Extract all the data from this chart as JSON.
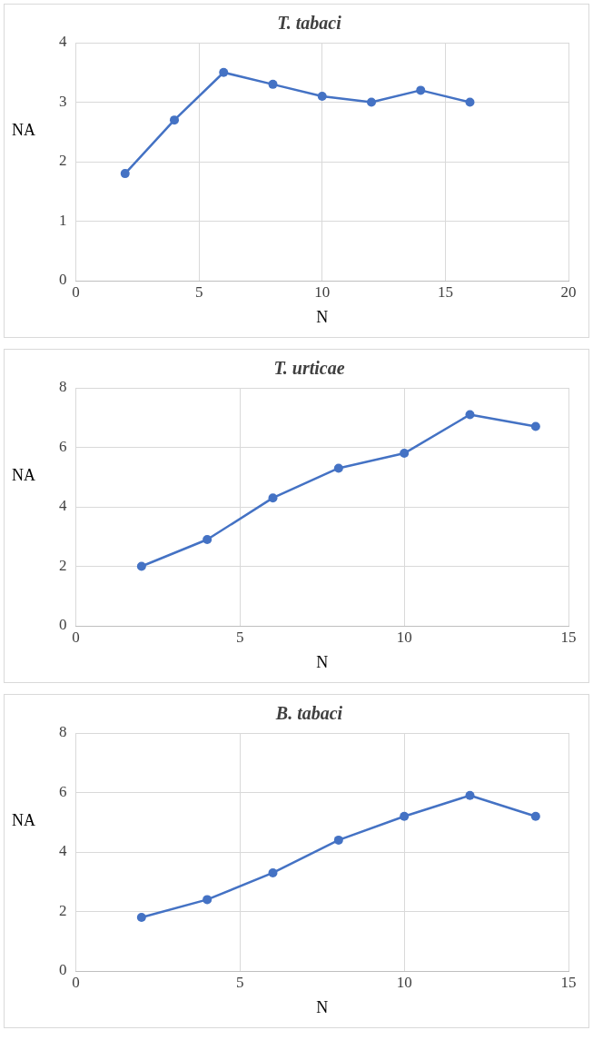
{
  "chart_data": [
    {
      "type": "line",
      "title": "T. tabaci",
      "xlabel": "N",
      "ylabel": "NA",
      "x": [
        2,
        4,
        6,
        8,
        10,
        12,
        14,
        16
      ],
      "series": [
        {
          "color": "#4472c4",
          "values": [
            1.8,
            2.7,
            3.5,
            3.3,
            3.1,
            3.0,
            3.2,
            3.0
          ]
        }
      ],
      "xlim": [
        0,
        20
      ],
      "xticks": [
        0,
        5,
        10,
        15,
        20
      ],
      "ylim": [
        0,
        4
      ],
      "yticks": [
        0,
        1,
        2,
        3,
        4
      ],
      "grid": true,
      "legend": false,
      "marker": "circle",
      "line_style": "solid"
    },
    {
      "type": "line",
      "title": "T. urticae",
      "xlabel": "N",
      "ylabel": "NA",
      "x": [
        2,
        4,
        6,
        8,
        10,
        12,
        14
      ],
      "series": [
        {
          "color": "#4472c4",
          "values": [
            2.0,
            2.9,
            4.3,
            5.3,
            5.8,
            7.1,
            6.7
          ]
        }
      ],
      "xlim": [
        0,
        15
      ],
      "xticks": [
        0,
        5,
        10,
        15
      ],
      "ylim": [
        0,
        8
      ],
      "yticks": [
        0,
        2,
        4,
        6,
        8
      ],
      "grid": true,
      "legend": false,
      "marker": "circle",
      "line_style": "solid"
    },
    {
      "type": "line",
      "title": "B. tabaci",
      "xlabel": "N",
      "ylabel": "NA",
      "x": [
        2,
        4,
        6,
        8,
        10,
        12,
        14
      ],
      "series": [
        {
          "color": "#4472c4",
          "values": [
            1.8,
            2.4,
            3.3,
            4.4,
            5.2,
            5.9,
            5.2
          ]
        }
      ],
      "xlim": [
        0,
        15
      ],
      "xticks": [
        0,
        5,
        10,
        15
      ],
      "ylim": [
        0,
        8
      ],
      "yticks": [
        0,
        2,
        4,
        6,
        8
      ],
      "grid": true,
      "legend": false,
      "marker": "circle",
      "line_style": "solid"
    }
  ]
}
